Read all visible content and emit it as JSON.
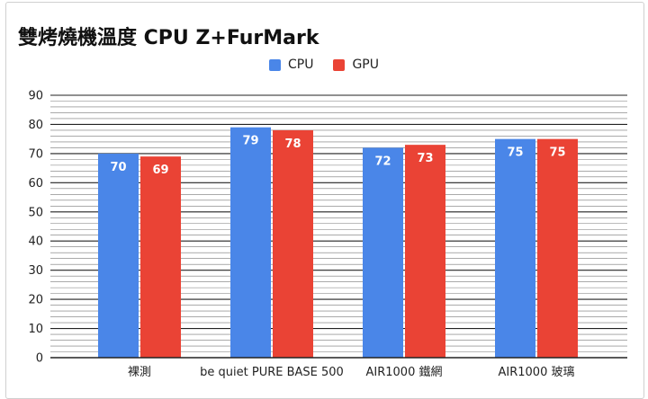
{
  "title": "雙烤燒機溫度 CPU Z+FurMark",
  "colors": {
    "cpu": "#4a86e8",
    "gpu": "#ea4335",
    "grid": "#222222"
  },
  "chart_data": {
    "type": "bar",
    "title": "雙烤燒機溫度 CPU Z+FurMark",
    "categories": [
      "裸測",
      "be quiet PURE BASE 500",
      "AIR1000 鐵網",
      "AIR1000  玻璃"
    ],
    "series": [
      {
        "name": "CPU",
        "color": "#4a86e8",
        "values": [
          70,
          79,
          72,
          75
        ]
      },
      {
        "name": "GPU",
        "color": "#ea4335",
        "values": [
          69,
          78,
          73,
          75
        ]
      }
    ],
    "ylim": [
      0,
      90
    ],
    "yticks": [
      0,
      10,
      20,
      30,
      40,
      50,
      60,
      70,
      80,
      90
    ],
    "minor_grid_step": 2,
    "legend": "top",
    "grid": true,
    "data_labels": true
  }
}
